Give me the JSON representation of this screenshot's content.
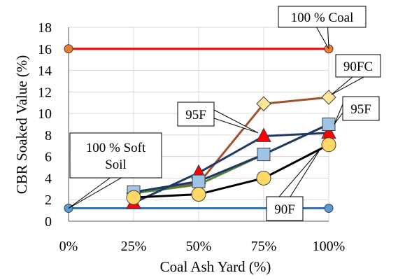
{
  "chart_data": {
    "type": "line",
    "xlabel": "Coal Ash Yard (%)",
    "ylabel": "CBR Soaked Value (%)",
    "x_ticks": [
      "0%",
      "25%",
      "50%",
      "75%",
      "100%"
    ],
    "ylim": [
      0,
      18
    ],
    "y_ticks": [
      "0",
      "2",
      "4",
      "6",
      "8",
      "10",
      "12",
      "14",
      "16",
      "18"
    ],
    "grid": true,
    "series": [
      {
        "name": "100 % Coal",
        "color": "#ff0000",
        "marker": "circle",
        "marker_fill": "#ed7d31",
        "points": [
          [
            0,
            16
          ],
          [
            100,
            16
          ]
        ]
      },
      {
        "name": "100 % Soft Soil",
        "color": "#2e75b6",
        "marker": "circle",
        "marker_fill": "#5b9bd5",
        "points": [
          [
            0,
            1.2
          ],
          [
            100,
            1.2
          ]
        ]
      },
      {
        "name": "90FC",
        "color": "#a0522d",
        "marker": "diamond",
        "marker_fill": "#ffe699",
        "points": [
          [
            25,
            2.6
          ],
          [
            50,
            3.5
          ],
          [
            75,
            10.9
          ],
          [
            100,
            11.5
          ]
        ]
      },
      {
        "name": "",
        "color": "#548235",
        "marker": "none",
        "marker_fill": "",
        "points": [
          [
            25,
            2.6
          ],
          [
            50,
            3.4
          ],
          [
            75,
            6.2
          ],
          [
            100,
            9.0
          ]
        ]
      },
      {
        "name": "95F",
        "color": "#1f3864",
        "marker": "triangle",
        "marker_fill": "#ff0000",
        "points": [
          [
            25,
            1.7
          ],
          [
            50,
            4.5
          ],
          [
            75,
            7.9
          ],
          [
            100,
            8.2
          ]
        ]
      },
      {
        "name": "",
        "color": "#1f3864",
        "marker": "square",
        "marker_fill": "#9dc3e6",
        "points": [
          [
            25,
            2.7
          ],
          [
            50,
            3.7
          ],
          [
            75,
            6.2
          ],
          [
            100,
            9.0
          ]
        ]
      },
      {
        "name": "90F",
        "color": "#000000",
        "marker": "circle",
        "marker_fill": "#ffd966",
        "points": [
          [
            25,
            2.2
          ],
          [
            50,
            2.5
          ],
          [
            75,
            4.0
          ],
          [
            100,
            7.1
          ]
        ]
      }
    ],
    "callouts": [
      {
        "text": "100 % Coal"
      },
      {
        "text": "90FC"
      },
      {
        "text": "95F"
      },
      {
        "text": "95F"
      },
      {
        "text": "100 % Soft\nSoil"
      },
      {
        "text": "90F"
      }
    ]
  }
}
